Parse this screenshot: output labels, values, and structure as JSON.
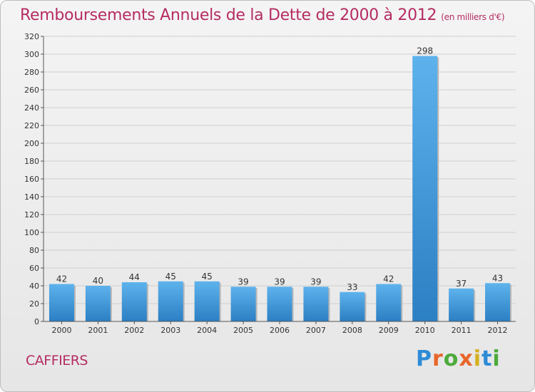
{
  "header": {
    "title": "Remboursements Annuels de la Dette de 2000 à 2012",
    "unit": "(en milliers d'€)"
  },
  "footer": {
    "commune": "CAFFIERS",
    "logo": "Proxiti"
  },
  "colors": {
    "title": "#b52c62",
    "bar_top": "#5eb2ec",
    "bar_bottom": "#2b7fc3",
    "grid": "#cfcfcf"
  },
  "chart_data": {
    "type": "bar",
    "categories": [
      "2000",
      "2001",
      "2002",
      "2003",
      "2004",
      "2005",
      "2006",
      "2007",
      "2008",
      "2009",
      "2010",
      "2011",
      "2012"
    ],
    "values": [
      42,
      40,
      44,
      45,
      45,
      39,
      39,
      39,
      33,
      42,
      298,
      37,
      43
    ],
    "ylim": [
      0,
      320
    ],
    "yticks": [
      0,
      20,
      40,
      60,
      80,
      100,
      120,
      140,
      160,
      180,
      200,
      220,
      240,
      260,
      280,
      300,
      320
    ],
    "grid": true,
    "xlabel": "",
    "ylabel": ""
  }
}
